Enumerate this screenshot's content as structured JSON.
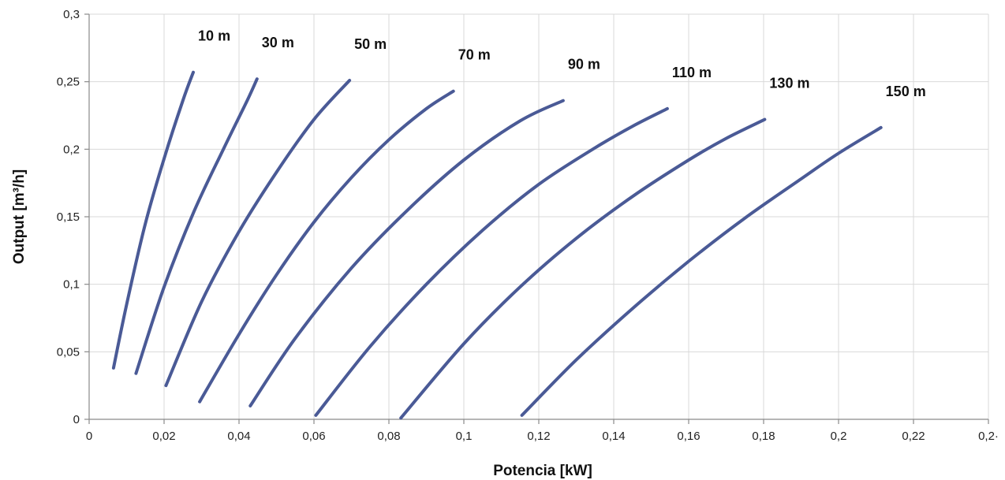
{
  "chart_data": {
    "type": "line",
    "title": "",
    "xlabel": "Potencia  [kW]",
    "ylabel": "Output [m³/h]",
    "xlim": [
      0,
      0.24
    ],
    "ylim": [
      0,
      0.3
    ],
    "x_ticks": [
      {
        "value": 0,
        "label": "0"
      },
      {
        "value": 0.02,
        "label": "0,02"
      },
      {
        "value": 0.04,
        "label": "0,04"
      },
      {
        "value": 0.06,
        "label": "0,06"
      },
      {
        "value": 0.08,
        "label": "0,08"
      },
      {
        "value": 0.1,
        "label": "0,1"
      },
      {
        "value": 0.12,
        "label": "0,12"
      },
      {
        "value": 0.14,
        "label": "0,14"
      },
      {
        "value": 0.16,
        "label": "0,16"
      },
      {
        "value": 0.18,
        "label": "0,18"
      },
      {
        "value": 0.2,
        "label": "0,2"
      },
      {
        "value": 0.22,
        "label": "0,22"
      },
      {
        "value": 0.24,
        "label": "0,2·"
      }
    ],
    "y_ticks": [
      {
        "value": 0,
        "label": "0"
      },
      {
        "value": 0.05,
        "label": "0,05"
      },
      {
        "value": 0.1,
        "label": "0,1"
      },
      {
        "value": 0.15,
        "label": "0,15"
      },
      {
        "value": 0.2,
        "label": "0,2"
      },
      {
        "value": 0.25,
        "label": "0,25"
      },
      {
        "value": 0.3,
        "label": "0,3"
      }
    ],
    "grid": true,
    "legend": "none",
    "line_color": "#4a5a96",
    "series": [
      {
        "name": "10 m",
        "x": [
          0.0065,
          0.01,
          0.015,
          0.02,
          0.025,
          0.0278
        ],
        "y": [
          0.038,
          0.085,
          0.145,
          0.193,
          0.236,
          0.257
        ]
      },
      {
        "name": "30 m",
        "x": [
          0.0125,
          0.02,
          0.028,
          0.036,
          0.042,
          0.0448
        ],
        "y": [
          0.034,
          0.098,
          0.154,
          0.201,
          0.235,
          0.252
        ]
      },
      {
        "name": "50 m",
        "x": [
          0.0205,
          0.03,
          0.04,
          0.05,
          0.06,
          0.0695
        ],
        "y": [
          0.025,
          0.087,
          0.139,
          0.183,
          0.222,
          0.251
        ]
      },
      {
        "name": "70 m",
        "x": [
          0.0295,
          0.04,
          0.05,
          0.06,
          0.07,
          0.08,
          0.09,
          0.0972
        ],
        "y": [
          0.013,
          0.063,
          0.107,
          0.146,
          0.179,
          0.207,
          0.23,
          0.243
        ]
      },
      {
        "name": "90 m",
        "x": [
          0.043,
          0.055,
          0.07,
          0.085,
          0.1,
          0.115,
          0.1265
        ],
        "y": [
          0.01,
          0.06,
          0.112,
          0.155,
          0.192,
          0.221,
          0.236
        ]
      },
      {
        "name": "110 m",
        "x": [
          0.0605,
          0.075,
          0.09,
          0.105,
          0.12,
          0.135,
          0.145,
          0.1543
        ],
        "y": [
          0.003,
          0.054,
          0.1,
          0.14,
          0.174,
          0.201,
          0.217,
          0.23
        ]
      },
      {
        "name": "130 m",
        "x": [
          0.0832,
          0.1,
          0.115,
          0.13,
          0.145,
          0.16,
          0.17,
          0.1803
        ],
        "y": [
          0.001,
          0.056,
          0.098,
          0.134,
          0.165,
          0.192,
          0.208,
          0.222
        ]
      },
      {
        "name": "150 m",
        "x": [
          0.1155,
          0.13,
          0.145,
          0.16,
          0.175,
          0.19,
          0.2,
          0.2113
        ],
        "y": [
          0.003,
          0.044,
          0.082,
          0.117,
          0.149,
          0.178,
          0.197,
          0.216
        ]
      }
    ]
  }
}
